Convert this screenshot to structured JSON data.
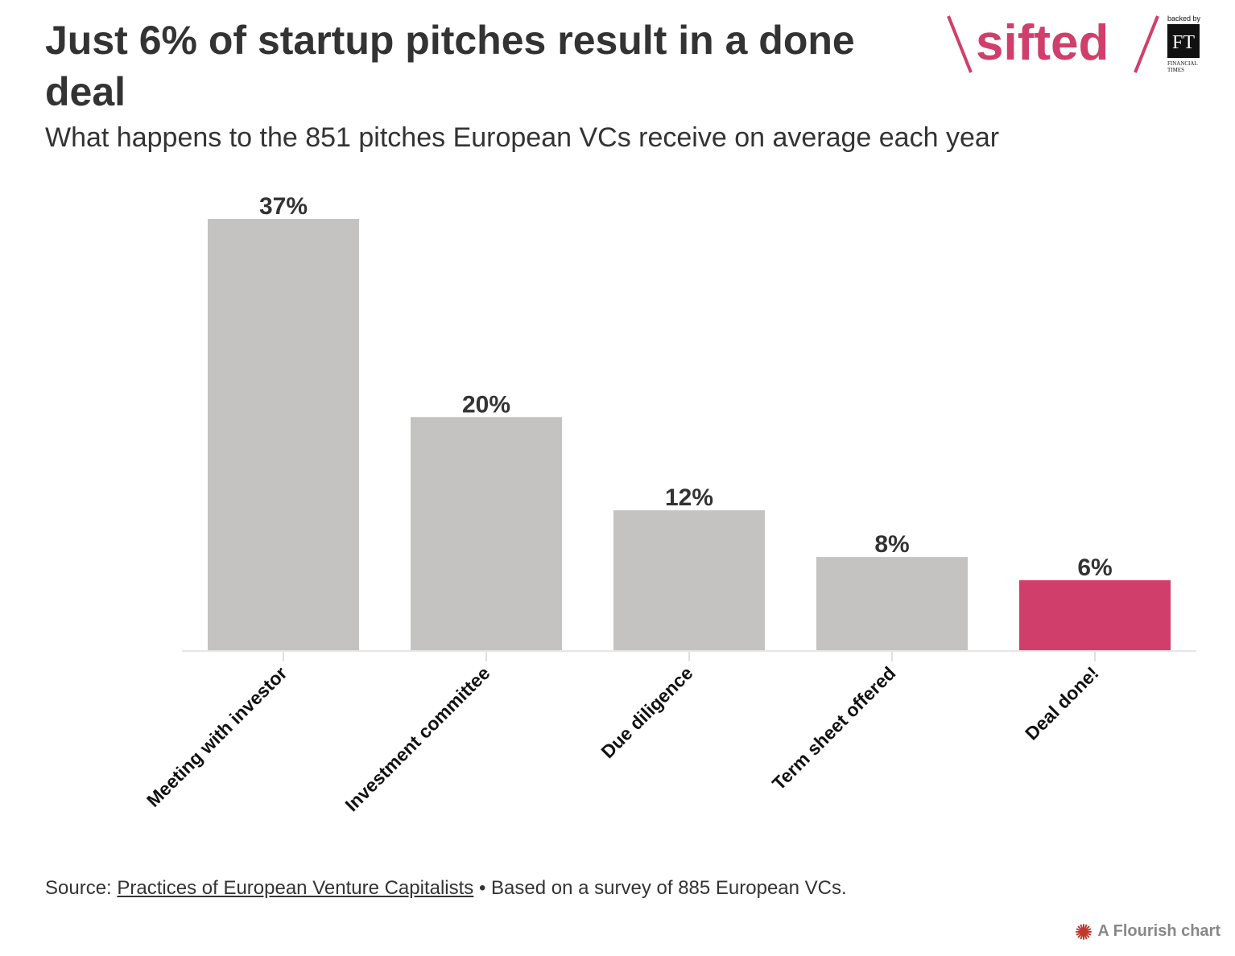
{
  "header": {
    "title": "Just 6% of startup pitches result in a done deal",
    "subtitle": "What happens to the 851 pitches European VCs receive on average each year"
  },
  "logo": {
    "brand": "sifted",
    "backed_by": "backed by",
    "ft_mark": "FT",
    "ft_line1": "FINANCIAL",
    "ft_line2": "TIMES",
    "brand_color": "#d03f6b"
  },
  "chart_data": {
    "type": "bar",
    "categories": [
      "Meeting with investor",
      "Investment committee",
      "Due diligence",
      "Term sheet offered",
      "Deal done!"
    ],
    "values": [
      37,
      20,
      12,
      8,
      6
    ],
    "value_labels": [
      "37%",
      "20%",
      "12%",
      "8%",
      "6%"
    ],
    "unit": "%",
    "ylim": [
      0,
      40
    ],
    "grid": false,
    "colors": [
      "#c4c3c1",
      "#c4c3c1",
      "#c4c3c1",
      "#c4c3c1",
      "#d03f6b"
    ]
  },
  "footer": {
    "source_prefix": "Source: ",
    "source_link": "Practices of European Venture Capitalists",
    "source_suffix": " • Based on a survey of 885 European VCs.",
    "flourish": "A Flourish chart",
    "flourish_icon": "flourish-star-icon"
  }
}
